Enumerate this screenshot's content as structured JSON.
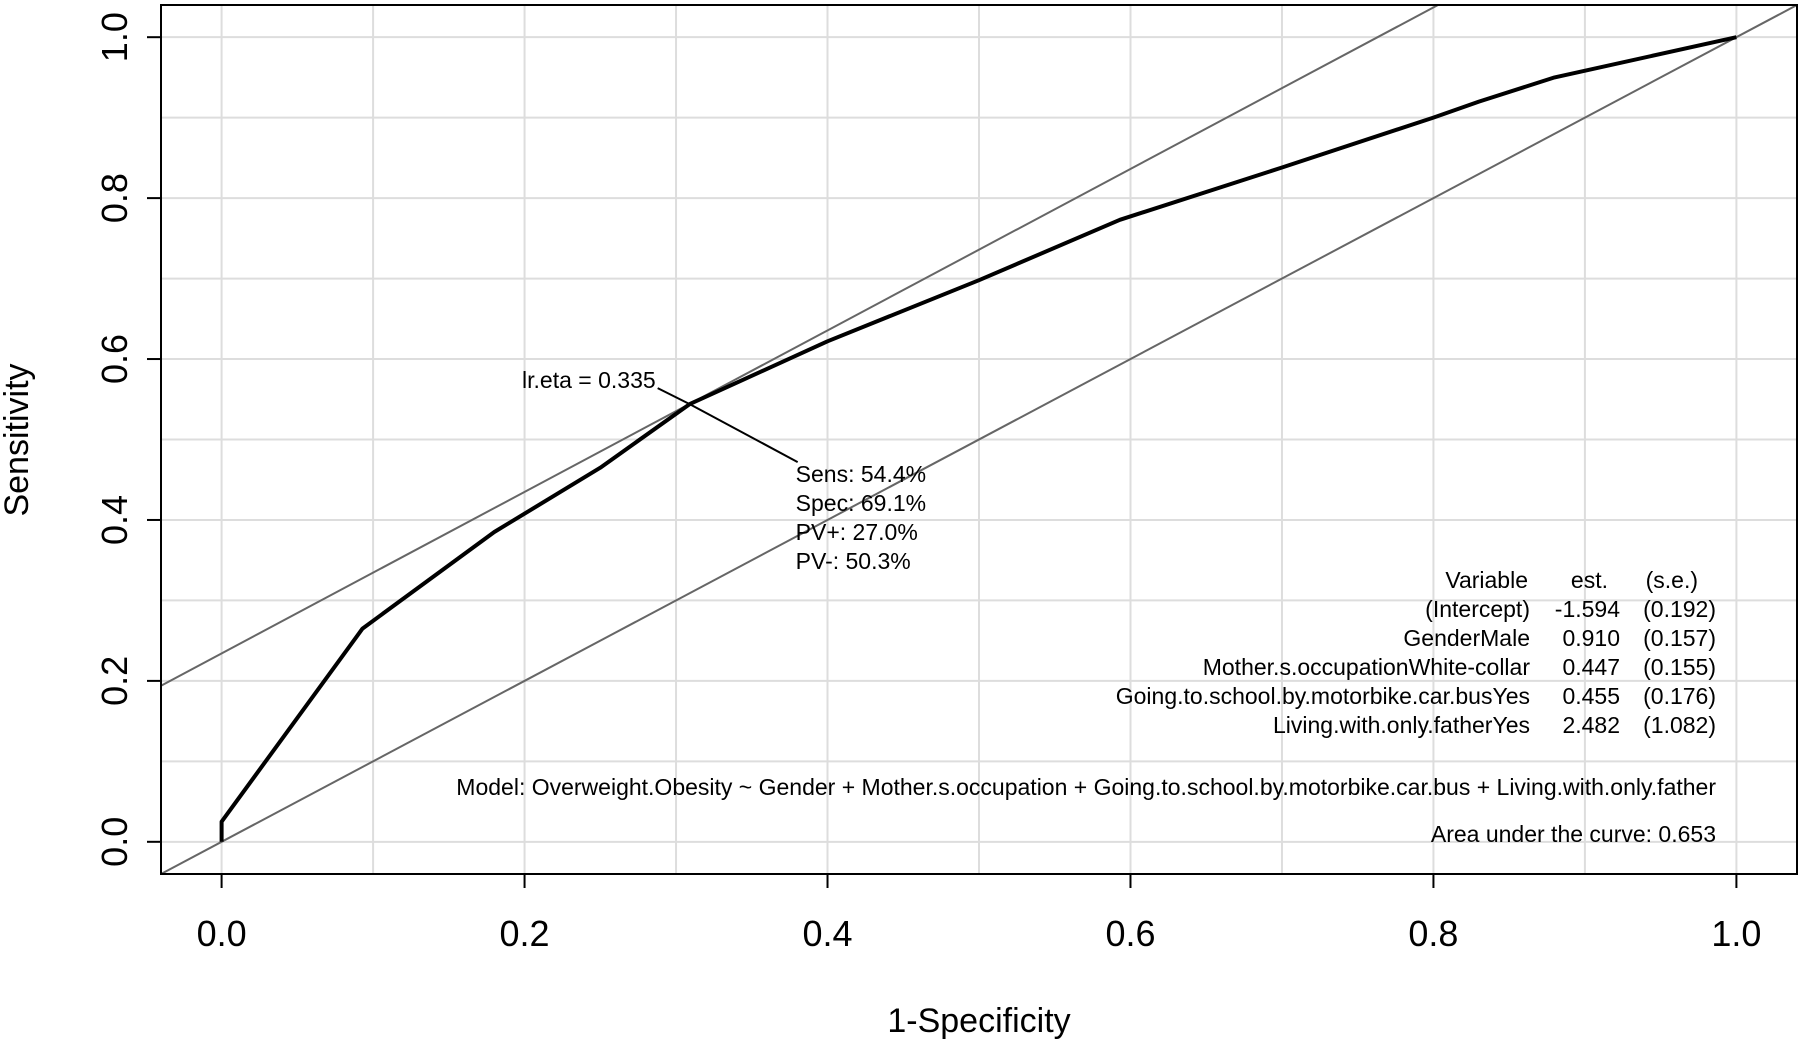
{
  "chart_data": {
    "type": "line",
    "title": "",
    "xlabel": "1-Specificity",
    "ylabel": "Sensitivity",
    "xlim": [
      -0.04,
      1.04
    ],
    "ylim": [
      -0.04,
      1.04
    ],
    "x_ticks": [
      "0.0",
      "0.2",
      "0.4",
      "0.6",
      "0.8",
      "1.0"
    ],
    "y_ticks": [
      "0.0",
      "0.2",
      "0.4",
      "0.6",
      "0.8",
      "1.0"
    ],
    "grid": true,
    "roc_curve": {
      "x": [
        0.0,
        0.0,
        0.093,
        0.18,
        0.25,
        0.309,
        0.4,
        0.5,
        0.593,
        0.7,
        0.8,
        0.83,
        0.88,
        1.0
      ],
      "y": [
        0.0,
        0.025,
        0.265,
        0.385,
        0.465,
        0.544,
        0.622,
        0.698,
        0.773,
        0.838,
        0.9,
        0.92,
        0.95,
        1.0
      ]
    },
    "reference_lines": [
      {
        "x": [
          -0.04,
          1.04
        ],
        "y": [
          -0.04,
          1.04
        ]
      },
      {
        "x": [
          -0.04,
          0.803
        ],
        "y": [
          0.194,
          1.04
        ]
      }
    ],
    "cutoff_point": {
      "x": 0.309,
      "y": 0.544
    },
    "cutoff_label": "lr.eta = 0.335",
    "cutoff_stats": [
      "Sens: 54.4%",
      "Spec: 69.1%",
      "PV+: 27.0%",
      "PV-: 50.3%"
    ],
    "coef_table": {
      "headers": [
        "Variable",
        "est.",
        "(s.e.)"
      ],
      "rows": [
        [
          "(Intercept)",
          "-1.594",
          "(0.192)"
        ],
        [
          "GenderMale",
          "0.910",
          "(0.157)"
        ],
        [
          "Mother.s.occupationWhite-collar",
          "0.447",
          "(0.155)"
        ],
        [
          "Going.to.school.by.motorbike.car.busYes",
          "0.455",
          "(0.176)"
        ],
        [
          "Living.with.only.fatherYes",
          "2.482",
          "(1.082)"
        ]
      ]
    },
    "model_text": "Model:  Overweight.Obesity ~ Gender + Mother.s.occupation + Going.to.school.by.motorbike.car.bus + Living.with.only.father",
    "auc_text": "Area under the curve: 0.653"
  }
}
